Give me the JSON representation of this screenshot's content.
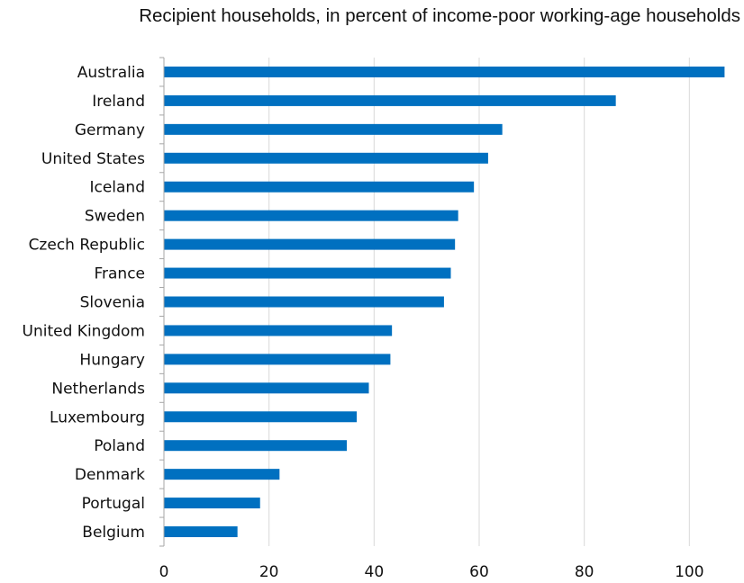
{
  "chart_data": {
    "type": "bar",
    "orientation": "horizontal",
    "title": "Recipient households, in percent of income-poor working-age households",
    "categories": [
      "Australia",
      "Ireland",
      "Germany",
      "United States",
      "Iceland",
      "Sweden",
      "Czech Republic",
      "France",
      "Slovenia",
      "United Kingdom",
      "Hungary",
      "Netherlands",
      "Luxembourg",
      "Poland",
      "Denmark",
      "Portugal",
      "Belgium"
    ],
    "values": [
      106.7,
      86.0,
      64.4,
      61.7,
      59.0,
      56.0,
      55.4,
      54.6,
      53.3,
      43.4,
      43.1,
      39.0,
      36.7,
      34.8,
      22.0,
      18.3,
      14.0
    ],
    "xlim": [
      0,
      108
    ],
    "xticks": [
      0,
      20,
      40,
      60,
      80,
      100
    ],
    "grid": "vertical",
    "bar_color": "#0070C0",
    "gridline_color": "#D9D9D9",
    "axis_color": "#A6A6A6"
  }
}
